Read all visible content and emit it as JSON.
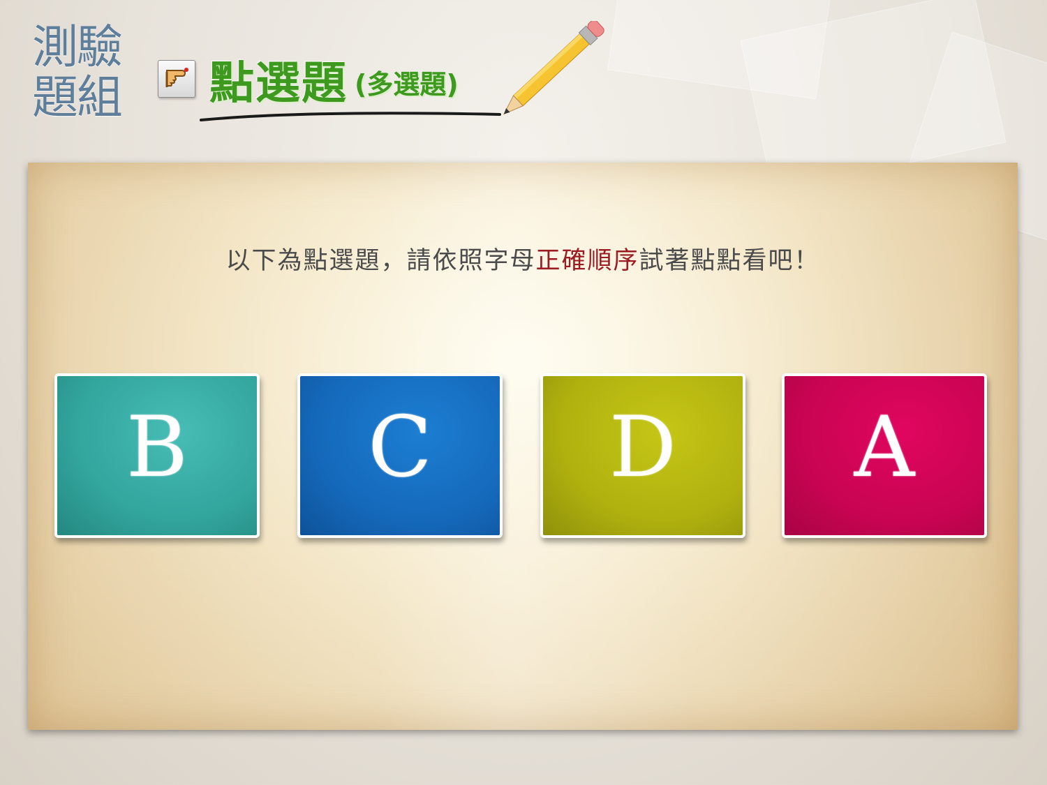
{
  "header": {
    "section_title": "測驗題組",
    "question_type_icon": "pointer-hand-icon",
    "main_title": "點選題",
    "sub_title": "(多選題)"
  },
  "instruction": {
    "before": "以下為點選題，請依照字母",
    "highlight": "正確順序",
    "after": "試著點點看吧！",
    "highlight_color": "#9a1b22"
  },
  "cards": [
    {
      "letter": "B",
      "color": "#36a9a1"
    },
    {
      "letter": "C",
      "color": "#1569bb"
    },
    {
      "letter": "D",
      "color": "#b3b410"
    },
    {
      "letter": "A",
      "color": "#c90452"
    }
  ]
}
